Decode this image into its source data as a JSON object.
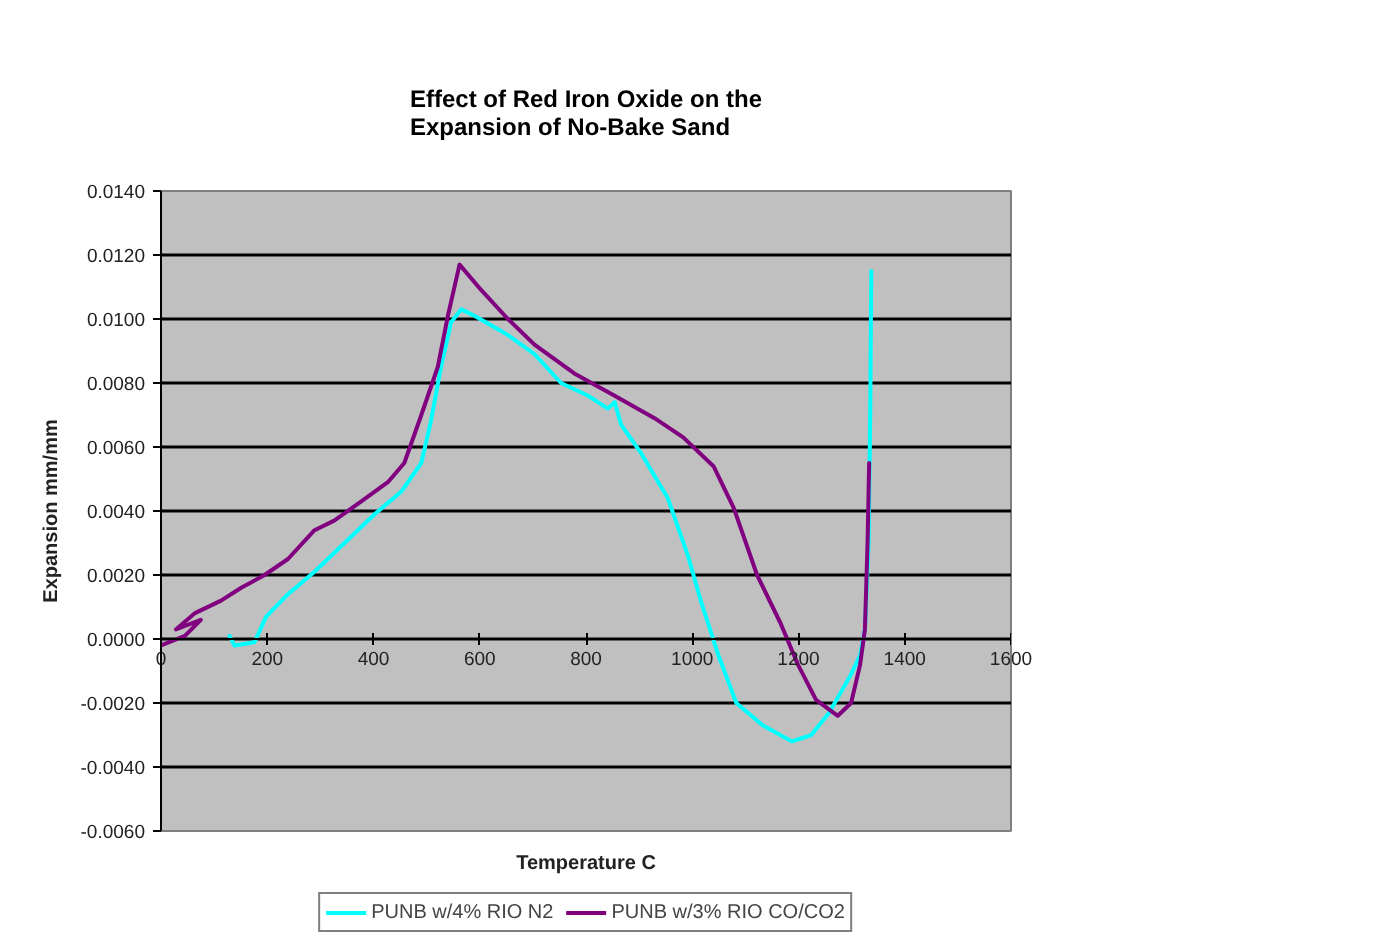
{
  "chart_data": {
    "type": "line",
    "title": "Effect of Red Iron Oxide on the Expansion of No-Bake Sand",
    "xlabel": "Temperature C",
    "ylabel": "Expansion mm/mm",
    "xlim": [
      0,
      1600
    ],
    "xticks": [
      0,
      200,
      400,
      600,
      800,
      1000,
      1200,
      1400,
      1600
    ],
    "ylim": [
      -0.006,
      0.014
    ],
    "yticks": [
      {
        "value": -0.006,
        "label": "-0.0060"
      },
      {
        "value": -0.004,
        "label": "-0.0040"
      },
      {
        "value": -0.002,
        "label": "-0.0020"
      },
      {
        "value": 0,
        "label": "0.0000"
      },
      {
        "value": 0.002,
        "label": "0.0020"
      },
      {
        "value": 0.004,
        "label": "0.0040"
      },
      {
        "value": 0.006,
        "label": "0.0060"
      },
      {
        "value": 0.008,
        "label": "0.0080"
      },
      {
        "value": 0.01,
        "label": "0.0100"
      },
      {
        "value": 0.012,
        "label": "0.0120"
      },
      {
        "value": 0.014,
        "label": "0.0140"
      }
    ],
    "grid": "y",
    "legend": "bottom",
    "series": [
      {
        "name": "PUNB w/4% RIO N2",
        "color": "#00ffff",
        "x": [
          129,
          138,
          176,
          198,
          239,
          289,
          339,
          402,
          452,
          490,
          508,
          527,
          546,
          565,
          590,
          653,
          703,
          753,
          804,
          841,
          854,
          866,
          904,
          954,
          992,
          1016,
          1049,
          1083,
          1133,
          1188,
          1224,
          1258,
          1299,
          1316,
          1325,
          1332,
          1335,
          1337
        ],
        "values": [
          0.0001,
          -0.0002,
          -0.0001,
          0.0007,
          0.0014,
          0.0021,
          0.0029,
          0.0039,
          0.0046,
          0.0055,
          0.0068,
          0.0085,
          0.0099,
          0.0103,
          0.0101,
          0.0095,
          0.0089,
          0.008,
          0.0076,
          0.0072,
          0.0074,
          0.0067,
          0.0058,
          0.0044,
          0.0026,
          0.0012,
          -0.0005,
          -0.002,
          -0.0027,
          -0.0032,
          -0.003,
          -0.0023,
          -0.0011,
          -0.0005,
          0.0003,
          0.003,
          0.007,
          0.0115
        ]
      },
      {
        "name": "PUNB w/3% RIO CO/CO2",
        "color": "#800080",
        "x": [
          0,
          45,
          75,
          28,
          63,
          113,
          151,
          195,
          239,
          289,
          326,
          377,
          427,
          458,
          490,
          521,
          540,
          562,
          603,
          653,
          703,
          778,
          854,
          929,
          983,
          1040,
          1078,
          1122,
          1166,
          1199,
          1233,
          1274,
          1299,
          1316,
          1325,
          1330,
          1333
        ],
        "values": [
          -0.0002,
          0.0001,
          0.0006,
          0.0003,
          0.0008,
          0.0012,
          0.0016,
          0.002,
          0.0025,
          0.0034,
          0.0037,
          0.0043,
          0.0049,
          0.0055,
          0.007,
          0.0085,
          0.0101,
          0.0117,
          0.0109,
          0.01,
          0.0092,
          0.0083,
          0.0076,
          0.0069,
          0.0063,
          0.0054,
          0.0041,
          0.002,
          0.0005,
          -0.0008,
          -0.0019,
          -0.0024,
          -0.002,
          -0.0008,
          0.0003,
          0.003,
          0.0055
        ]
      }
    ]
  }
}
